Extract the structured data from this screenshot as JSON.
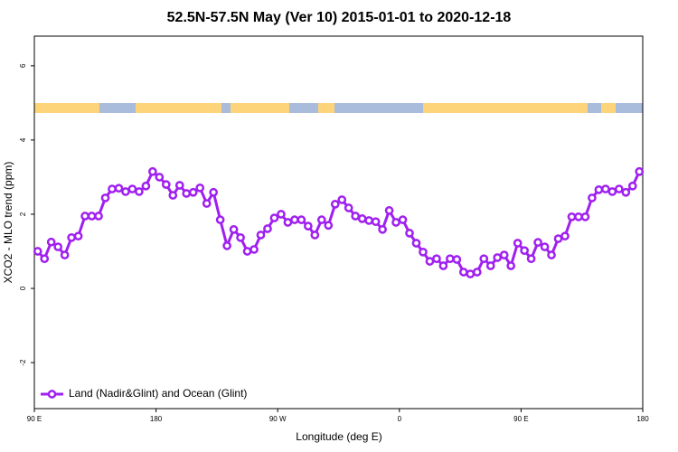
{
  "chart_data": {
    "type": "line",
    "title": "52.5N-57.5N May (Ver 10)   2015-01-01 to 2020-12-18",
    "x_label": "Longitude (deg E)",
    "y_label": "XCO2 - MLO trend (ppm)",
    "x": [
      92.5,
      97.5,
      102.5,
      107.5,
      112.5,
      117.5,
      122.5,
      127.5,
      132.5,
      137.5,
      142.5,
      147.5,
      152.5,
      157.5,
      162.5,
      167.5,
      172.5,
      177.5,
      182.5,
      187.5,
      192.5,
      197.5,
      202.5,
      207.5,
      212.5,
      217.5,
      222.5,
      227.5,
      232.5,
      237.5,
      242.5,
      247.5,
      252.5,
      257.5,
      262.5,
      267.5,
      272.5,
      277.5,
      282.5,
      287.5,
      292.5,
      297.5,
      302.5,
      307.5,
      312.5,
      317.5,
      322.5,
      327.5,
      332.5,
      337.5,
      342.5,
      347.5,
      352.5,
      357.5,
      362.5,
      367.5,
      372.5,
      377.5,
      382.5,
      387.5,
      392.5,
      397.5,
      402.5,
      407.5,
      412.5,
      417.5,
      422.5,
      427.5,
      432.5,
      437.5,
      442.5,
      447.5,
      452.5,
      457.5,
      462.5,
      467.5,
      472.5,
      477.5,
      482.5,
      487.5,
      492.5,
      497.5,
      502.5,
      507.5,
      512.5,
      517.5,
      522.5,
      527.5,
      532.5,
      537.5
    ],
    "series": [
      {
        "name": "Land (Nadir&Glint) and Ocean (Glint)",
        "color": "#a020f0",
        "values": [
          1.0,
          0.8,
          1.25,
          1.12,
          0.9,
          1.37,
          1.41,
          1.95,
          1.95,
          1.95,
          2.44,
          2.68,
          2.7,
          2.61,
          2.68,
          2.61,
          2.76,
          3.15,
          3.0,
          2.8,
          2.51,
          2.78,
          2.56,
          2.59,
          2.71,
          2.29,
          2.59,
          1.85,
          1.15,
          1.59,
          1.37,
          1.0,
          1.05,
          1.44,
          1.61,
          1.9,
          2.0,
          1.78,
          1.85,
          1.85,
          1.68,
          1.44,
          1.85,
          1.7,
          2.27,
          2.39,
          2.17,
          1.95,
          1.88,
          1.83,
          1.8,
          1.59,
          2.1,
          1.78,
          1.85,
          1.49,
          1.22,
          0.98,
          0.73,
          0.8,
          0.61,
          0.8,
          0.78,
          0.44,
          0.39,
          0.44,
          0.8,
          0.61,
          0.83,
          0.9,
          0.61,
          1.22,
          1.02,
          0.8,
          1.24,
          1.12,
          0.9,
          1.34,
          1.41,
          1.93,
          1.93,
          1.93,
          2.44,
          2.66,
          2.68,
          2.61,
          2.68,
          2.59,
          2.76,
          3.15
        ]
      }
    ],
    "xlim": [
      90,
      540
    ],
    "xticks": [
      {
        "value": 90,
        "label": "90 E"
      },
      180,
      {
        "value": 270,
        "label": "90 W"
      },
      {
        "value": 360,
        "label": "0"
      },
      {
        "value": 450,
        "label": "90 E"
      },
      {
        "value": 540,
        "label": "180"
      }
    ],
    "ylim": [
      -3.24,
      6.8
    ],
    "yticks": [
      -2,
      0,
      2,
      4,
      6
    ],
    "legend": "bottom-left"
  }
}
